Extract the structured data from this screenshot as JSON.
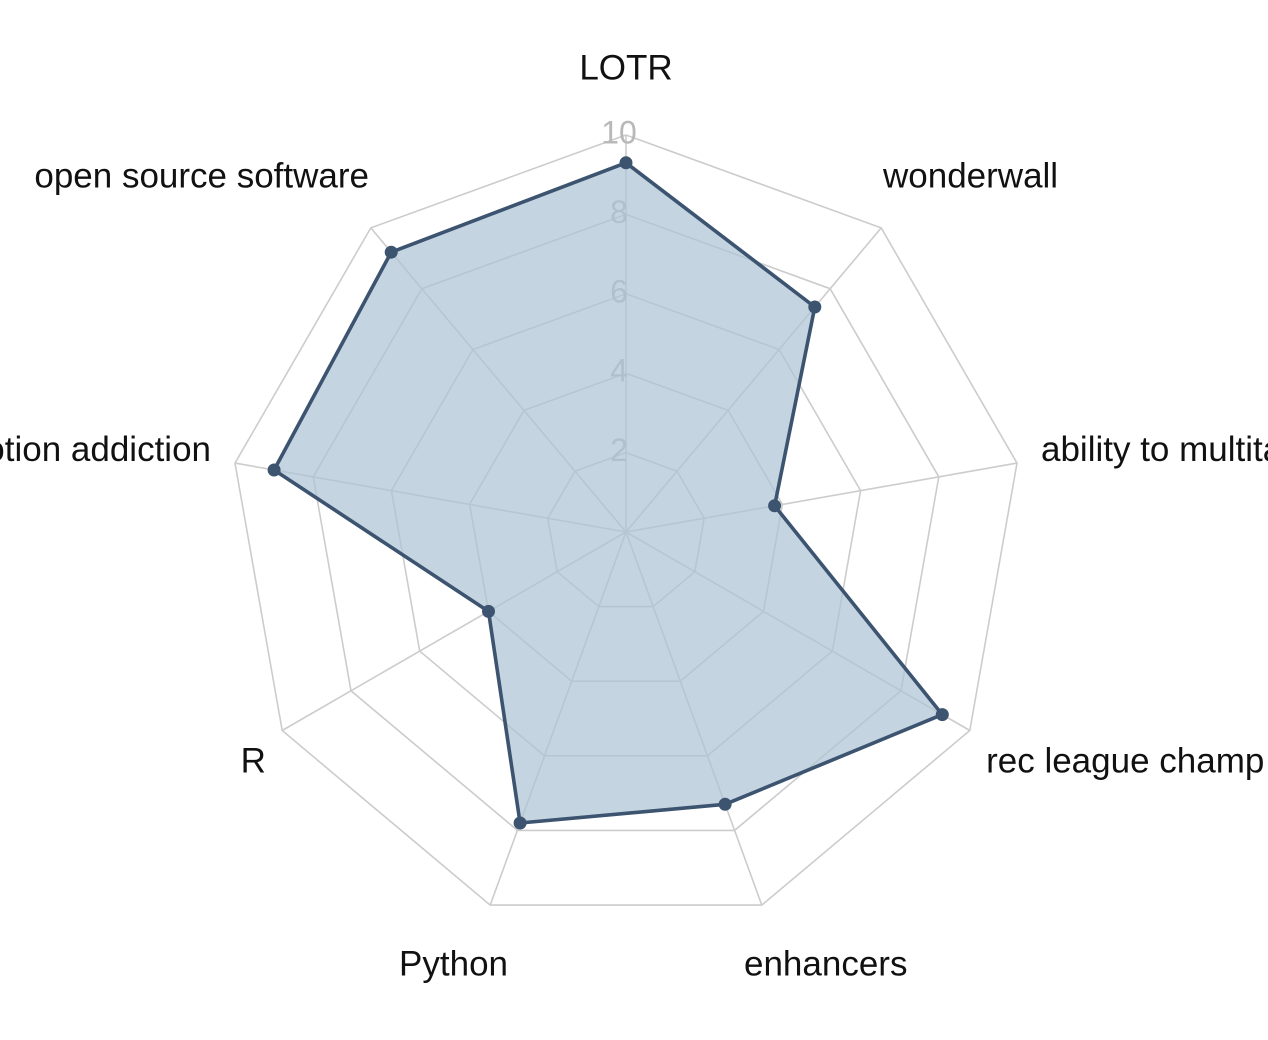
{
  "chart_data": {
    "type": "radar",
    "axes": [
      "LOTR",
      "wonderwall",
      "ability to multitask",
      "rec league champ",
      "enhancers",
      "Python",
      "R",
      "Notion addiction",
      "open source software"
    ],
    "series": [
      {
        "values": [
          9.3,
          7.4,
          3.8,
          9.2,
          7.3,
          7.8,
          4.0,
          9.0,
          9.2
        ]
      }
    ],
    "rlim": [
      0,
      10
    ],
    "ticks": [
      "2",
      "4",
      "6",
      "8",
      "10"
    ],
    "colors": {
      "line": "#3c5470",
      "fill": "#aec3d6",
      "grid": "#cccccc",
      "tick": "#b8b8b8"
    },
    "legend": "none",
    "grid": true
  }
}
